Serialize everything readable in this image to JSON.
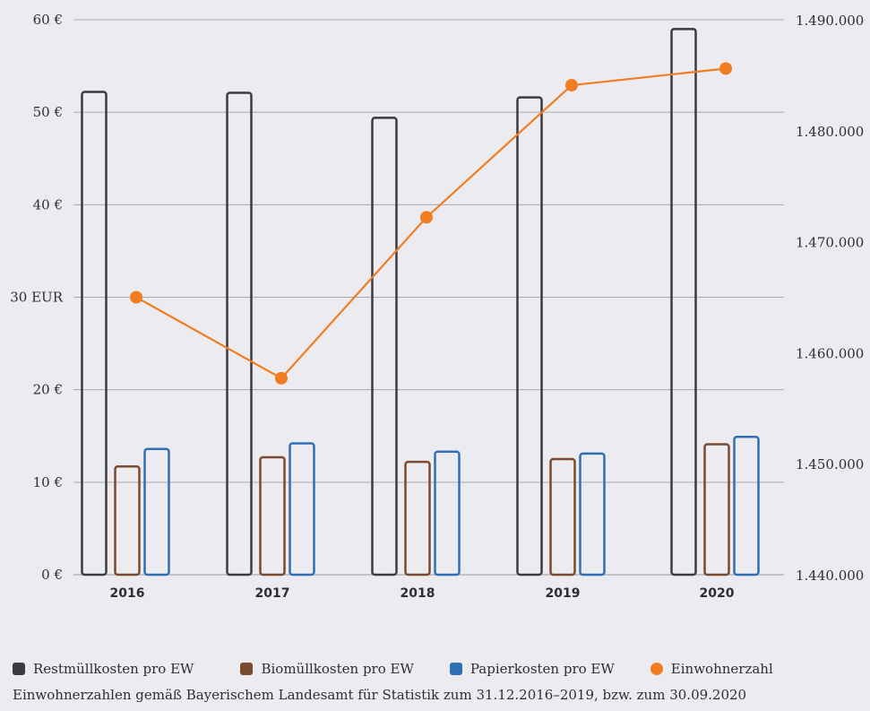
{
  "chart_data": {
    "type": "bar",
    "categories": [
      "2016",
      "2017",
      "2018",
      "2019",
      "2020"
    ],
    "series": [
      {
        "name": "Restmüllkosten pro EW",
        "kind": "bar",
        "axis": "left",
        "color": "#3a3a40",
        "values": [
          52.2,
          52.1,
          49.4,
          51.6,
          59.0
        ]
      },
      {
        "name": "Biomüllkosten pro EW",
        "kind": "bar",
        "axis": "left",
        "color": "#7a4a2f",
        "values": [
          11.7,
          12.7,
          12.2,
          12.5,
          14.1
        ]
      },
      {
        "name": "Papierkosten pro EW",
        "kind": "bar",
        "axis": "left",
        "color": "#2f6fb5",
        "values": [
          13.6,
          14.2,
          13.3,
          13.1,
          14.9
        ]
      },
      {
        "name": "Einwohnerzahl",
        "kind": "line",
        "axis": "right",
        "color": "#f07d22",
        "values": [
          1465000,
          1457700,
          1472200,
          1484100,
          1485600
        ]
      }
    ],
    "y_left": {
      "min": 0,
      "max": 60,
      "ticks": [
        "0 €",
        "10 €",
        "20 €",
        "30 EUR",
        "40 €",
        "50 €",
        "60 €"
      ]
    },
    "y_right": {
      "min": 1440000,
      "max": 1490000,
      "ticks": [
        "1.440.000",
        "1.450.000",
        "1.460.000",
        "1.470.000",
        "1.480.000",
        "1.490.000"
      ]
    },
    "grid": true,
    "legend_position": "bottom-left"
  },
  "legend": [
    {
      "label": "Restmüllkosten pro EW",
      "color": "#3a3a40",
      "shape": "square"
    },
    {
      "label": "Biomüllkosten pro EW",
      "color": "#7a4a2f",
      "shape": "square"
    },
    {
      "label": "Papierkosten pro EW",
      "color": "#2f6fb5",
      "shape": "square"
    },
    {
      "label": "Einwohnerzahl",
      "color": "#f07d22",
      "shape": "circle"
    }
  ],
  "source_note": "Einwohnerzahlen gemäß Bayerischem Landesamt für Statistik zum 31.12.2016–2019, bzw. zum 30.09.2020"
}
